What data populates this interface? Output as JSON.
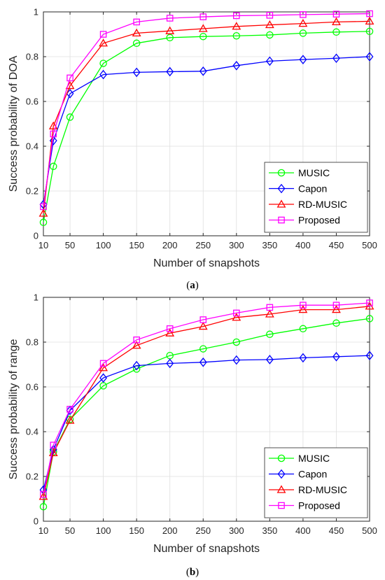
{
  "chart_data": [
    {
      "type": "line",
      "caption": "a",
      "xlabel": "Number of snapshots",
      "ylabel": "Success probability of DOA",
      "xlim": [
        10,
        500
      ],
      "ylim": [
        0,
        1
      ],
      "xticks": [
        10,
        50,
        100,
        150,
        200,
        250,
        300,
        350,
        400,
        450,
        500
      ],
      "yticks": [
        0,
        0.2,
        0.4,
        0.6,
        0.8,
        1
      ],
      "ytick_labels": [
        "0",
        "0.2",
        "0.4",
        "0.6",
        "0.8",
        "1"
      ],
      "grid": true,
      "legend_position": "bottom-right",
      "x": [
        10,
        25,
        50,
        100,
        150,
        200,
        250,
        300,
        350,
        400,
        450,
        500
      ],
      "series": [
        {
          "name": "MUSIC",
          "color": "#00ff00",
          "marker": "circle",
          "values": [
            0.06,
            0.31,
            0.53,
            0.77,
            0.86,
            0.885,
            0.89,
            0.893,
            0.897,
            0.905,
            0.91,
            0.913
          ]
        },
        {
          "name": "Capon",
          "color": "#0000ff",
          "marker": "diamond",
          "values": [
            0.14,
            0.425,
            0.635,
            0.72,
            0.73,
            0.733,
            0.735,
            0.76,
            0.78,
            0.787,
            0.793,
            0.8
          ]
        },
        {
          "name": "RD-MUSIC",
          "color": "#ff0000",
          "marker": "triangle",
          "values": [
            0.1,
            0.49,
            0.67,
            0.86,
            0.905,
            0.915,
            0.925,
            0.935,
            0.942,
            0.948,
            0.955,
            0.958
          ]
        },
        {
          "name": "Proposed",
          "color": "#ff00ff",
          "marker": "square",
          "values": [
            0.13,
            0.455,
            0.705,
            0.9,
            0.955,
            0.972,
            0.978,
            0.983,
            0.985,
            0.988,
            0.99,
            0.992
          ]
        }
      ]
    },
    {
      "type": "line",
      "caption": "b",
      "xlabel": "Number of snapshots",
      "ylabel": "Success probability of range",
      "xlim": [
        10,
        500
      ],
      "ylim": [
        0,
        1
      ],
      "xticks": [
        10,
        50,
        100,
        150,
        200,
        250,
        300,
        350,
        400,
        450,
        500
      ],
      "yticks": [
        0,
        0.2,
        0.4,
        0.6,
        0.8,
        1
      ],
      "ytick_labels": [
        "0",
        "0.2",
        "0.4",
        "0.6",
        "0.8",
        "1"
      ],
      "grid": true,
      "legend_position": "bottom-right",
      "x": [
        10,
        25,
        50,
        100,
        150,
        200,
        250,
        300,
        350,
        400,
        450,
        500
      ],
      "series": [
        {
          "name": "MUSIC",
          "color": "#00ff00",
          "marker": "circle",
          "values": [
            0.065,
            0.31,
            0.455,
            0.605,
            0.68,
            0.74,
            0.77,
            0.8,
            0.835,
            0.86,
            0.885,
            0.905
          ]
        },
        {
          "name": "Capon",
          "color": "#0000ff",
          "marker": "diamond",
          "values": [
            0.14,
            0.32,
            0.495,
            0.64,
            0.695,
            0.705,
            0.71,
            0.72,
            0.722,
            0.73,
            0.735,
            0.74
          ]
        },
        {
          "name": "RD-MUSIC",
          "color": "#ff0000",
          "marker": "triangle",
          "values": [
            0.11,
            0.305,
            0.45,
            0.685,
            0.785,
            0.84,
            0.87,
            0.91,
            0.925,
            0.945,
            0.945,
            0.96
          ]
        },
        {
          "name": "Proposed",
          "color": "#ff00ff",
          "marker": "square",
          "values": [
            0.12,
            0.34,
            0.5,
            0.705,
            0.81,
            0.86,
            0.9,
            0.93,
            0.955,
            0.965,
            0.965,
            0.975
          ]
        }
      ]
    }
  ]
}
